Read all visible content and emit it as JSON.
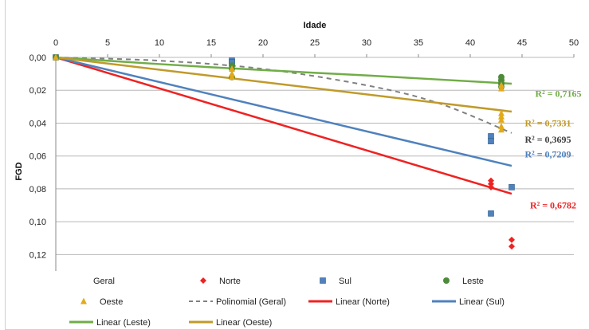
{
  "chart_data": {
    "type": "scatter",
    "xlabel": "Idade",
    "ylabel": "FGD",
    "xlim": [
      0,
      50
    ],
    "ylim": [
      0,
      0.13
    ],
    "y_reversed": true,
    "x_axis_position": "top",
    "x_ticks": [
      "0",
      "5",
      "10",
      "15",
      "20",
      "25",
      "30",
      "35",
      "40",
      "45",
      "50"
    ],
    "y_ticks": [
      "0,00",
      "0,02",
      "0,04",
      "0,06",
      "0,08",
      "0,10",
      "0,12"
    ],
    "x_tick_values": [
      0,
      5,
      10,
      15,
      20,
      25,
      30,
      35,
      40,
      45,
      50
    ],
    "y_tick_values": [
      0,
      0.02,
      0.04,
      0.06,
      0.08,
      0.1,
      0.12
    ],
    "grid": "horizontal",
    "series": [
      {
        "name": "Geral",
        "kind": "points",
        "marker": "none",
        "color": "#555555",
        "points": []
      },
      {
        "name": "Norte",
        "kind": "points",
        "marker": "diamond",
        "color": "#ee2222",
        "points": [
          [
            0,
            0
          ],
          [
            42,
            0.075
          ],
          [
            42,
            0.077
          ],
          [
            42,
            0.079
          ],
          [
            44,
            0.111
          ],
          [
            44,
            0.115
          ]
        ]
      },
      {
        "name": "Sul",
        "kind": "points",
        "marker": "square",
        "color": "#4f81bd",
        "points": [
          [
            0,
            0
          ],
          [
            17,
            0.002
          ],
          [
            17,
            0.003
          ],
          [
            42,
            0.048
          ],
          [
            42,
            0.051
          ],
          [
            44,
            0.079
          ],
          [
            42,
            0.095
          ]
        ]
      },
      {
        "name": "Leste",
        "kind": "points",
        "marker": "circle",
        "color": "#4e8a3a",
        "points": [
          [
            0,
            0
          ],
          [
            17,
            0.005
          ],
          [
            17,
            0.007
          ],
          [
            17,
            0.012
          ],
          [
            43,
            0.012
          ],
          [
            43,
            0.014
          ],
          [
            43,
            0.016
          ],
          [
            43,
            0.018
          ]
        ]
      },
      {
        "name": "Oeste",
        "kind": "points",
        "marker": "triangle",
        "color": "#e2aa1a",
        "points": [
          [
            0,
            0
          ],
          [
            17,
            0.007
          ],
          [
            17,
            0.01
          ],
          [
            17,
            0.012
          ],
          [
            43,
            0.017
          ],
          [
            43,
            0.019
          ],
          [
            43,
            0.034
          ],
          [
            43,
            0.036
          ],
          [
            43,
            0.038
          ],
          [
            43,
            0.042
          ],
          [
            43,
            0.044
          ]
        ]
      },
      {
        "name": "Polinomial (Geral)",
        "kind": "curve",
        "style": "dashed",
        "color": "#808080",
        "width": 2,
        "points": [
          [
            0,
            0
          ],
          [
            10,
            0.002
          ],
          [
            20,
            0.007
          ],
          [
            30,
            0.017
          ],
          [
            37,
            0.028
          ],
          [
            44,
            0.046
          ]
        ]
      },
      {
        "name": "Linear (Norte)",
        "kind": "line",
        "style": "solid",
        "color": "#ee2222",
        "width": 2.5,
        "points": [
          [
            0,
            0
          ],
          [
            44,
            0.083
          ]
        ]
      },
      {
        "name": "Linear (Sul)",
        "kind": "line",
        "style": "solid",
        "color": "#4f81bd",
        "width": 2.5,
        "points": [
          [
            0,
            0
          ],
          [
            44,
            0.066
          ]
        ]
      },
      {
        "name": "Linear (Leste)",
        "kind": "curve",
        "style": "solid",
        "color": "#70ad47",
        "width": 2.5,
        "points": [
          [
            0,
            0
          ],
          [
            15,
            0.006
          ],
          [
            30,
            0.011
          ],
          [
            44,
            0.016
          ]
        ]
      },
      {
        "name": "Linear (Oeste)",
        "kind": "line",
        "style": "solid",
        "color": "#c09a2a",
        "width": 2.5,
        "points": [
          [
            0,
            0
          ],
          [
            44,
            0.033
          ]
        ]
      }
    ],
    "annotations": [
      {
        "text": "R² = 0,7165",
        "color": "#70ad47",
        "x": 48.5,
        "y": 0.022
      },
      {
        "text": "R² = 0,7331",
        "color": "#c09a2a",
        "x": 47.5,
        "y": 0.04
      },
      {
        "text": "R² = 0,3695",
        "color": "#404040",
        "x": 47.5,
        "y": 0.05
      },
      {
        "text": "R² = 0,7209",
        "color": "#4f81bd",
        "x": 47.5,
        "y": 0.059
      },
      {
        "text": "R² = 0,6782",
        "color": "#ee2222",
        "x": 48,
        "y": 0.09
      }
    ],
    "legend_placement": "bottom",
    "legend": [
      {
        "label": "Geral",
        "symbol": "none",
        "color": "#555555"
      },
      {
        "label": "Norte",
        "symbol": "diamond",
        "color": "#ee2222"
      },
      {
        "label": "Sul",
        "symbol": "square",
        "color": "#4f81bd"
      },
      {
        "label": "Leste",
        "symbol": "circle",
        "color": "#4e8a3a"
      },
      {
        "label": "Oeste",
        "symbol": "triangle",
        "color": "#e2aa1a"
      },
      {
        "label": "Polinomial (Geral)",
        "symbol": "dashed-line",
        "color": "#808080"
      },
      {
        "label": "Linear (Norte)",
        "symbol": "line",
        "color": "#ee2222"
      },
      {
        "label": "Linear (Sul)",
        "symbol": "line",
        "color": "#4f81bd"
      },
      {
        "label": "Linear (Leste)",
        "symbol": "line",
        "color": "#70ad47"
      },
      {
        "label": "Linear (Oeste)",
        "symbol": "line",
        "color": "#c09a2a"
      }
    ]
  }
}
